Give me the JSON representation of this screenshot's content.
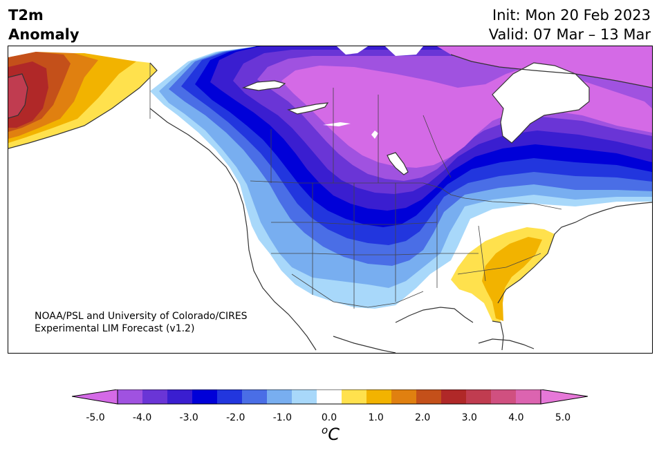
{
  "header": {
    "title_line1": "T2m",
    "title_line2": "Anomaly",
    "init": "Init: Mon 20 Feb 2023",
    "valid": "Valid: 07 Mar – 13 Mar"
  },
  "credit": {
    "line1": "NOAA/PSL and University of Colorado/CIRES",
    "line2": "Experimental LIM Forecast (v1.2)"
  },
  "colorbar": {
    "colors": [
      "#d46ae6",
      "#a052e0",
      "#6a35d6",
      "#3a1ed0",
      "#0000d8",
      "#2236de",
      "#4a6ee6",
      "#78aef0",
      "#a8d8fa",
      "#ffffff",
      "#ffe14d",
      "#f2b300",
      "#e08010",
      "#c4501a",
      "#b02828",
      "#c03c50",
      "#d05080",
      "#dc64b0",
      "#e678d8"
    ],
    "ticks": [
      "-5.0",
      "-4.0",
      "-3.0",
      "-2.0",
      "-1.0",
      "0.0",
      "1.0",
      "2.0",
      "3.0",
      "4.0",
      "5.0"
    ],
    "unit_base": "o",
    "unit_letter": "C"
  },
  "map_colors": {
    "land_outline": "#333333",
    "neutral": "#ffffff",
    "pink_cold": "#d46ae6",
    "purple": "#a052e0",
    "violet": "#6a35d6",
    "indigo": "#3a1ed0",
    "deep_blue": "#0000d8",
    "royal_blue": "#2236de",
    "blue": "#4a6ee6",
    "light_blue": "#78aef0",
    "pale_blue": "#a8d8fa",
    "yellow": "#ffe14d",
    "gold": "#f2b300",
    "orange": "#e08010",
    "rust": "#c4501a",
    "red": "#b02828",
    "crimson": "#c03c50"
  }
}
